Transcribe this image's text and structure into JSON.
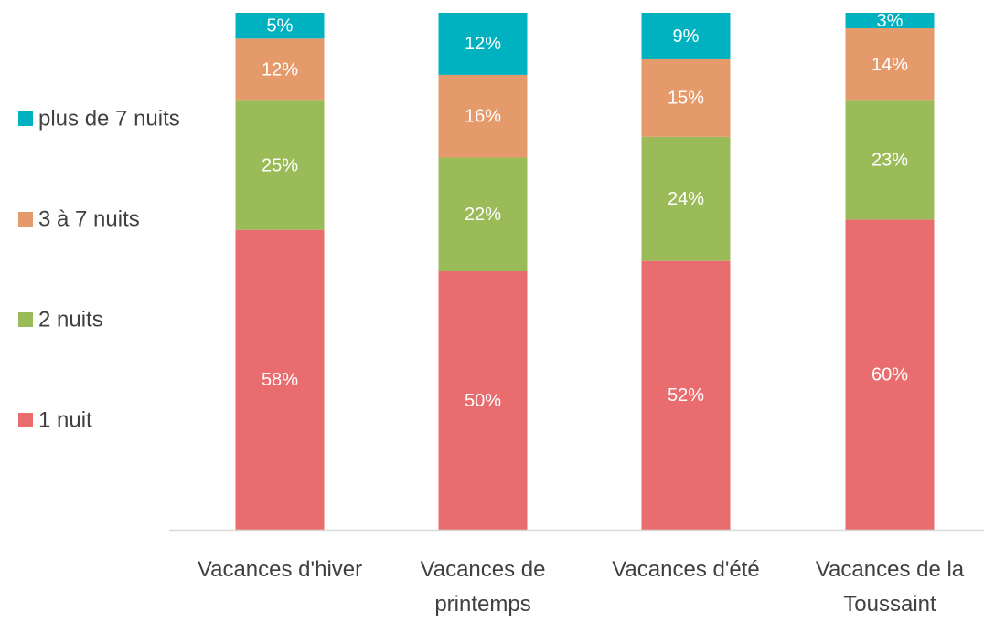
{
  "chart_data": {
    "type": "bar",
    "stacked": true,
    "categories": [
      "Vacances d'hiver",
      "Vacances de printemps",
      "Vacances d'été",
      "Vacances de la Toussaint"
    ],
    "series": [
      {
        "name": "1 nuit",
        "color": "#e96c6f",
        "values": [
          58,
          50,
          52,
          60
        ],
        "value_labels": [
          "58%",
          "50%",
          "52%",
          "60%"
        ]
      },
      {
        "name": "2 nuits",
        "color": "#9bbb59",
        "values": [
          25,
          22,
          24,
          23
        ],
        "value_labels": [
          "25%",
          "22%",
          "24%",
          "23%"
        ]
      },
      {
        "name": "3 à 7 nuits",
        "color": "#e59a6b",
        "values": [
          12,
          16,
          15,
          14
        ],
        "value_labels": [
          "12%",
          "16%",
          "15%",
          "14%"
        ]
      },
      {
        "name": "plus de 7 nuits",
        "color": "#00b2c0",
        "values": [
          5,
          12,
          9,
          3
        ],
        "value_labels": [
          "5%",
          "12%",
          "9%",
          "3%"
        ]
      }
    ],
    "ylim": [
      0,
      100
    ],
    "legend": "left"
  }
}
